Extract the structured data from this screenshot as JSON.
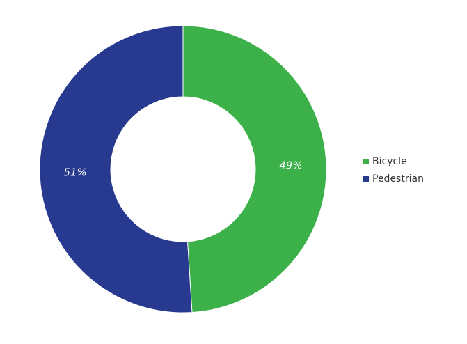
{
  "chart_data": {
    "type": "donut",
    "categories": [
      "Bicycle",
      "Pedestrian"
    ],
    "values": [
      49,
      51
    ],
    "value_labels": [
      "49%",
      "51%"
    ],
    "colors": [
      "#3cb14a",
      "#283a8f"
    ],
    "legend": "right"
  }
}
